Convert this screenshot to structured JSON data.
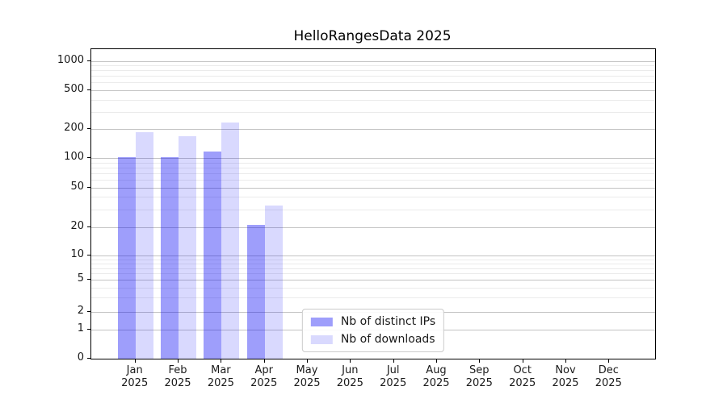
{
  "chart_data": {
    "type": "bar",
    "title": "HelloRangesData 2025",
    "categories": [
      "Jan",
      "Feb",
      "Mar",
      "Apr",
      "May",
      "Jun",
      "Jul",
      "Aug",
      "Sep",
      "Oct",
      "Nov",
      "Dec"
    ],
    "x_tick_year": "2025",
    "series": [
      {
        "name": "Nb of distinct IPs",
        "color": "rgba(0,0,245,0.38)",
        "values": [
          103,
          103,
          118,
          21,
          0,
          0,
          0,
          0,
          0,
          0,
          0,
          0
        ]
      },
      {
        "name": "Nb of downloads",
        "color": "rgba(0,0,245,0.15)",
        "values": [
          185,
          167,
          233,
          33,
          0,
          0,
          0,
          0,
          0,
          0,
          0,
          0
        ]
      }
    ],
    "y_ticks": [
      0,
      1,
      2,
      5,
      10,
      20,
      50,
      100,
      200,
      500,
      1000
    ],
    "y_minor_ticks": [
      3,
      4,
      6,
      7,
      8,
      9,
      30,
      40,
      60,
      70,
      80,
      90,
      300,
      400,
      600,
      700,
      800,
      900
    ],
    "yscale": "log-like (symlog)",
    "ylim": [
      0,
      1000
    ],
    "grid": true,
    "xlabel": "",
    "ylabel": "",
    "legend": {
      "position": "lower center",
      "entries": [
        "Nb of distinct IPs",
        "Nb of downloads"
      ]
    }
  }
}
